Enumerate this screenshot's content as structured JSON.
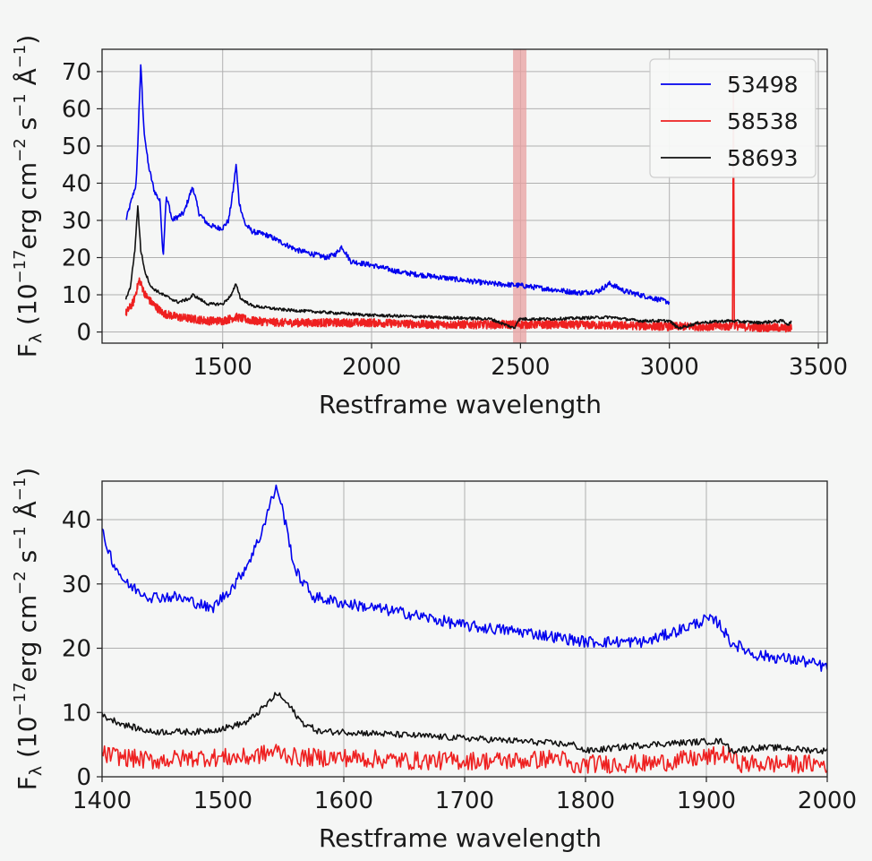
{
  "chart_data": [
    {
      "type": "line",
      "xlabel": "Restframe wavelength",
      "ylabel_parts": [
        "F",
        "λ",
        " (10",
        "−17",
        "erg cm",
        "−2",
        " s",
        "−1",
        " Å",
        "−1",
        ")"
      ],
      "xlim": [
        1095,
        3530
      ],
      "ylim": [
        -3,
        76
      ],
      "xticks": [
        1500,
        2000,
        2500,
        3000,
        3500
      ],
      "yticks": [
        0,
        10,
        20,
        30,
        40,
        50,
        60,
        70
      ],
      "grid": true,
      "legend": {
        "placement": "top-right",
        "entries": [
          "53498",
          "58538",
          "58693"
        ]
      },
      "highlight_band": {
        "x": [
          2475,
          2520
        ],
        "color": "#e8a0a0"
      },
      "series": [
        {
          "name": "53498",
          "color": "#0000ee",
          "x": [
            1175,
            1210,
            1225,
            1235,
            1250,
            1270,
            1290,
            1300,
            1310,
            1320,
            1330,
            1350,
            1370,
            1390,
            1400,
            1420,
            1450,
            1480,
            1500,
            1520,
            1535,
            1545,
            1555,
            1575,
            1600,
            1650,
            1700,
            1750,
            1800,
            1850,
            1880,
            1900,
            1930,
            2000,
            2100,
            2200,
            2300,
            2400,
            2500,
            2600,
            2700,
            2760,
            2800,
            2850,
            2900,
            2950,
            3000
          ],
          "y": [
            30,
            40,
            72,
            55,
            45,
            38,
            35,
            20,
            36,
            34,
            30,
            31,
            32,
            37,
            39,
            32,
            29,
            28,
            28,
            30,
            38,
            45,
            35,
            29,
            27,
            26,
            24,
            22,
            21,
            20,
            21,
            23,
            19,
            18,
            16,
            15,
            14,
            13,
            12.5,
            11.5,
            10.5,
            11,
            13,
            11,
            10,
            9,
            8
          ]
        },
        {
          "name": "58538",
          "color": "#ee2020",
          "x": [
            1175,
            1200,
            1220,
            1240,
            1260,
            1300,
            1350,
            1400,
            1450,
            1500,
            1545,
            1600,
            1700,
            1800,
            1900,
            2000,
            2200,
            2400,
            2600,
            2800,
            3000,
            3100,
            3200,
            3212,
            3215,
            3218,
            3230,
            3300,
            3350,
            3400,
            3410
          ],
          "y": [
            5,
            8,
            14,
            10,
            8,
            5,
            4,
            3.5,
            3,
            3,
            4,
            3,
            2.5,
            2.5,
            2.5,
            2.5,
            2,
            2,
            2,
            1.8,
            1.5,
            1.5,
            1.5,
            2,
            70,
            2,
            1.5,
            1.2,
            1.2,
            1,
            1
          ]
        },
        {
          "name": "58693",
          "color": "#111111",
          "x": [
            1175,
            1190,
            1205,
            1215,
            1225,
            1240,
            1260,
            1300,
            1350,
            1390,
            1400,
            1450,
            1500,
            1530,
            1545,
            1560,
            1600,
            1700,
            1800,
            1900,
            2000,
            2200,
            2400,
            2480,
            2490,
            2500,
            2600,
            2800,
            2900,
            3000,
            3030,
            3100,
            3200,
            3300,
            3380,
            3400,
            3410
          ],
          "y": [
            9,
            12,
            22,
            34,
            22,
            16,
            12,
            10,
            8,
            9,
            10,
            7.5,
            7.5,
            10,
            13,
            9,
            7,
            6,
            5.5,
            5,
            4.5,
            4,
            3.5,
            1,
            3,
            3.5,
            3.5,
            4,
            3,
            3,
            1,
            2.5,
            3,
            2.5,
            3,
            2,
            3
          ]
        }
      ]
    },
    {
      "type": "line",
      "xlabel": "Restframe wavelength",
      "ylabel_parts": [
        "F",
        "λ",
        " (10",
        "−17",
        "erg cm",
        "−2",
        " s",
        "−1",
        " Å",
        "−1",
        ")"
      ],
      "xlim": [
        1400,
        2000
      ],
      "ylim": [
        0,
        46
      ],
      "xticks": [
        1400,
        1500,
        1600,
        1700,
        1800,
        1900,
        2000
      ],
      "yticks": [
        0,
        10,
        20,
        30,
        40
      ],
      "grid": true,
      "series": [
        {
          "name": "53498",
          "color": "#0000ee",
          "x": [
            1400,
            1410,
            1420,
            1440,
            1460,
            1480,
            1490,
            1500,
            1510,
            1520,
            1530,
            1540,
            1545,
            1550,
            1560,
            1575,
            1600,
            1650,
            1700,
            1750,
            1800,
            1850,
            1880,
            1900,
            1910,
            1920,
            1940,
            1960,
            1980,
            2000
          ],
          "y": [
            38,
            33,
            30,
            28,
            28,
            27,
            26,
            28,
            30,
            33,
            37,
            43,
            45,
            41,
            32,
            28,
            27,
            25.5,
            23.5,
            22.5,
            21,
            21,
            23,
            24.5,
            24,
            21,
            19,
            18.5,
            18,
            17
          ]
        },
        {
          "name": "58538",
          "color": "#ee2020",
          "x": [
            1400,
            1440,
            1480,
            1520,
            1545,
            1560,
            1600,
            1650,
            1700,
            1750,
            1780,
            1790,
            1800,
            1850,
            1900,
            1915,
            1930,
            1960,
            2000
          ],
          "y": [
            3.5,
            2.5,
            3,
            3,
            4,
            3,
            3,
            2.5,
            2.5,
            2.5,
            3,
            1,
            2,
            2,
            3,
            3.5,
            2,
            2,
            2
          ]
        },
        {
          "name": "58693",
          "color": "#111111",
          "x": [
            1400,
            1420,
            1440,
            1480,
            1500,
            1520,
            1535,
            1545,
            1555,
            1565,
            1580,
            1600,
            1650,
            1700,
            1750,
            1790,
            1800,
            1850,
            1900,
            1915,
            1920,
            1940,
            1960,
            2000
          ],
          "y": [
            9.5,
            8,
            7,
            7,
            7.5,
            8.5,
            11,
            13,
            11,
            8.5,
            7,
            7,
            6.5,
            6,
            5.5,
            5,
            4,
            5,
            5.5,
            5.5,
            4,
            4.5,
            4.5,
            4
          ]
        }
      ]
    }
  ]
}
